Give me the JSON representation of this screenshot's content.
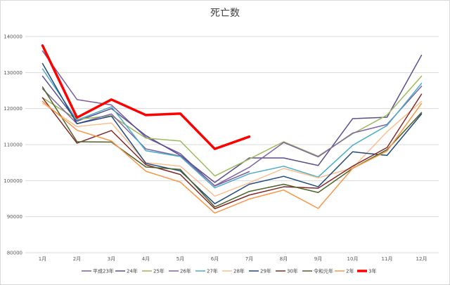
{
  "chart_data": {
    "type": "line",
    "title": "死亡数",
    "xlabel": "",
    "ylabel": "",
    "categories": [
      "1月",
      "2月",
      "3月",
      "4月",
      "5月",
      "6月",
      "7月",
      "8月",
      "9月",
      "10月",
      "11月",
      "12月"
    ],
    "ylim": [
      80000,
      140000
    ],
    "yticks": [
      "80000",
      "90000",
      "100000",
      "110000",
      "120000",
      "130000",
      "140000"
    ],
    "grid": true,
    "legend_position": "bottom",
    "series": [
      {
        "name": "平成23年",
        "color": "#7a5d9f",
        "width": 1.5,
        "values": [
          136000,
          122500,
          121000,
          112000,
          107500,
          98500,
          102500,
          null,
          null,
          null,
          null,
          null
        ]
      },
      {
        "name": "24年",
        "color": "#5a4e8e",
        "width": 1.5,
        "values": [
          129000,
          116500,
          120000,
          112500,
          107000,
          99500,
          106300,
          106300,
          104200,
          117200,
          117600,
          134800
        ]
      },
      {
        "name": "25年",
        "color": "#9bbb59",
        "width": 1.5,
        "values": [
          123000,
          117000,
          118000,
          111800,
          111000,
          101300,
          106000,
          110800,
          106800,
          113000,
          118200,
          129000
        ]
      },
      {
        "name": "26年",
        "color": "#8064a2",
        "width": 1.5,
        "values": [
          125500,
          115800,
          118500,
          108800,
          106800,
          98600,
          103700,
          110600,
          106600,
          113200,
          115600,
          126200
        ]
      },
      {
        "name": "27年",
        "color": "#4bacc6",
        "width": 1.5,
        "values": [
          131000,
          116800,
          120500,
          108300,
          106700,
          98000,
          101900,
          104000,
          101000,
          109800,
          115300,
          127000
        ]
      },
      {
        "name": "28年",
        "color": "#fac090",
        "width": 1.5,
        "values": [
          121500,
          115000,
          116000,
          105000,
          104000,
          95700,
          99400,
          103400,
          100800,
          103500,
          113600,
          122000
        ]
      },
      {
        "name": "29年",
        "color": "#1f497d",
        "width": 1.5,
        "values": [
          132500,
          115800,
          117900,
          104800,
          102700,
          93600,
          99000,
          101200,
          98300,
          108000,
          107000,
          118500
        ]
      },
      {
        "name": "30年",
        "color": "#7f2a2a",
        "width": 1.5,
        "values": [
          123000,
          110400,
          113900,
          104400,
          101700,
          92200,
          96000,
          98300,
          97900,
          104000,
          109200,
          124000
        ]
      },
      {
        "name": "令和元年",
        "color": "#4f6228",
        "width": 1.5,
        "values": [
          126000,
          110800,
          110700,
          103800,
          103100,
          92700,
          97000,
          99000,
          96700,
          103400,
          108600,
          118900
        ]
      },
      {
        "name": "2年",
        "color": "#f79646",
        "width": 1.5,
        "values": [
          122000,
          114000,
          111000,
          102600,
          99600,
          91000,
          94900,
          97400,
          92300,
          103400,
          108200,
          121400
        ]
      },
      {
        "name": "3年",
        "color": "#ff0000",
        "width": 3.5,
        "values": [
          137500,
          117500,
          122500,
          118200,
          118600,
          108800,
          112200,
          null,
          null,
          null,
          null,
          null
        ]
      }
    ]
  }
}
